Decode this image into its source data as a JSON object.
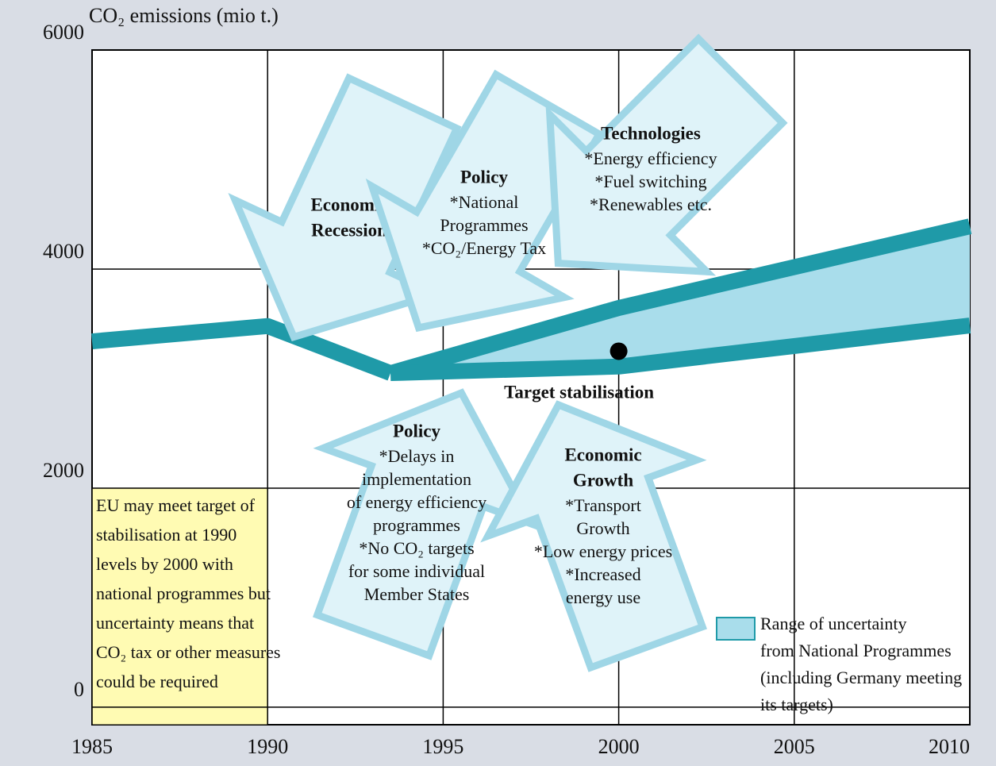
{
  "chart_data": {
    "type": "line",
    "y_label": "CO₂ emissions (mio t.)",
    "xlim": [
      1985,
      2010
    ],
    "xticks": [
      1985,
      1990,
      1995,
      2000,
      2005,
      2010
    ],
    "ylim": [
      -160,
      6000
    ],
    "yticks": [
      0,
      2000,
      4000,
      6000
    ],
    "grid": true,
    "x": [
      1985,
      1990,
      1993.5,
      2000,
      2010
    ],
    "series": [
      {
        "color": "#1f9aa8",
        "values": [
          3340,
          3480,
          3050,
          null,
          null
        ]
      }
    ],
    "band": {
      "name": [
        "Range of uncertainty",
        "from National Programmes",
        "(including Germany meeting",
        "its targets)"
      ],
      "color": "#a9ddeb",
      "edge_color": "#1f9aa8",
      "upper": [
        null,
        null,
        3050,
        3645,
        4390
      ],
      "lower": [
        null,
        null,
        3050,
        3110,
        3485
      ]
    },
    "legend": "bottom-right",
    "target": {
      "x": 2000,
      "y": 3250,
      "label": "Target stabilisation"
    },
    "note": [
      "EU may meet target of",
      "stabilisation at 1990",
      "levels by 2000 with",
      "national programmes but",
      "uncertainty means that",
      "CO₂ tax or other measures",
      "could be required"
    ],
    "arrows": [
      {
        "title": [
          "Economic",
          "Recession"
        ]
      },
      {
        "title": [
          "Policy"
        ],
        "lines": [
          "*National",
          "Programmes",
          "*CO₂/Energy Tax"
        ]
      },
      {
        "title": [
          "Technologies"
        ],
        "lines": [
          "*Energy efficiency",
          "*Fuel switching",
          "*Renewables etc."
        ]
      },
      {
        "title": [
          "Policy"
        ],
        "lines": [
          "*Delays in",
          "implementation",
          "of energy efficiency",
          "programmes",
          "*No CO₂ targets",
          "for some individual",
          "Member States"
        ]
      },
      {
        "title": [
          "Economic",
          "Growth"
        ],
        "lines": [
          "*Transport",
          "Growth",
          "*Low energy prices",
          "*Increased",
          "energy use"
        ]
      }
    ]
  }
}
